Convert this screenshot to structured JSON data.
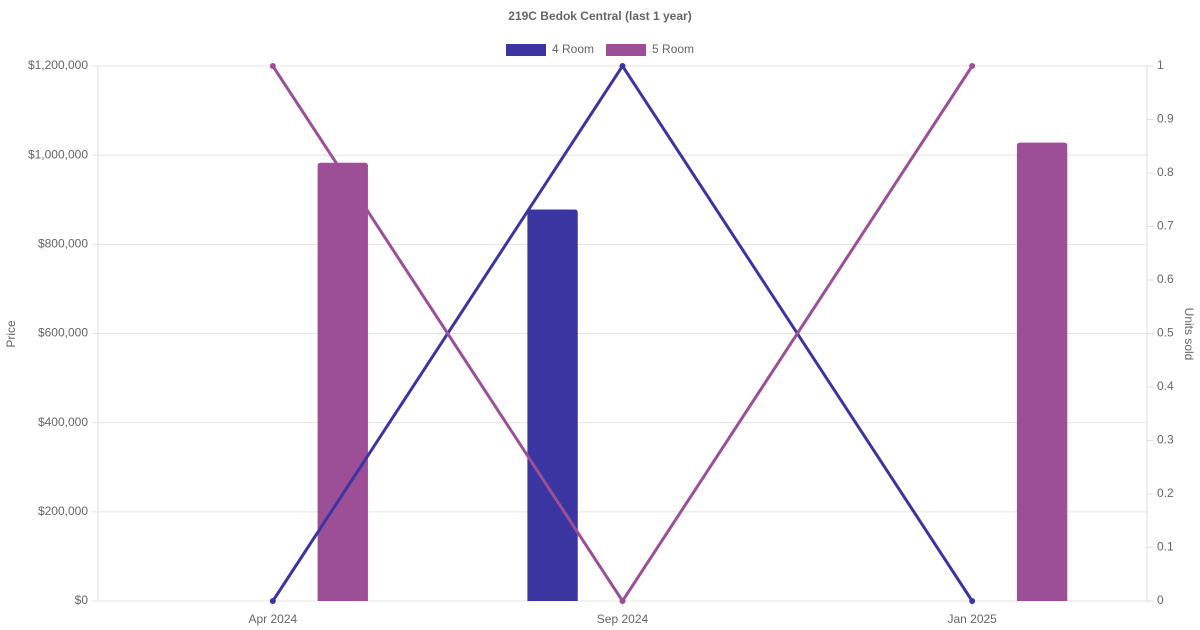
{
  "chart_data": {
    "type": "bar-line",
    "title": "219C Bedok Central (last 1 year)",
    "y_label": "Price",
    "y2_label": "Units sold",
    "categories": [
      "Apr 2024",
      "Sep 2024",
      "Jan 2025"
    ],
    "series": [
      {
        "name": "4 Room",
        "color": "#3a35a1",
        "values": [
          null,
          878000,
          null
        ],
        "units": [
          0,
          1,
          0
        ]
      },
      {
        "name": "5 Room",
        "color": "#9c4f96",
        "values": [
          983000,
          null,
          1028000
        ],
        "units": [
          1,
          0,
          1
        ]
      }
    ],
    "ylim": [
      0,
      1200000
    ],
    "yticks": [
      {
        "value": 0,
        "label": "$0"
      },
      {
        "value": 200000,
        "label": "$200,000"
      },
      {
        "value": 400000,
        "label": "$400,000"
      },
      {
        "value": 600000,
        "label": "$600,000"
      },
      {
        "value": 800000,
        "label": "$800,000"
      },
      {
        "value": 1000000,
        "label": "$1,000,000"
      },
      {
        "value": 1200000,
        "label": "$1,200,000"
      }
    ],
    "y2lim": [
      0,
      1
    ],
    "y2ticks": [
      0,
      0.1,
      0.2,
      0.3,
      0.4,
      0.5,
      0.6,
      0.7,
      0.8,
      0.9,
      1
    ],
    "grid": true,
    "legend": "top"
  }
}
